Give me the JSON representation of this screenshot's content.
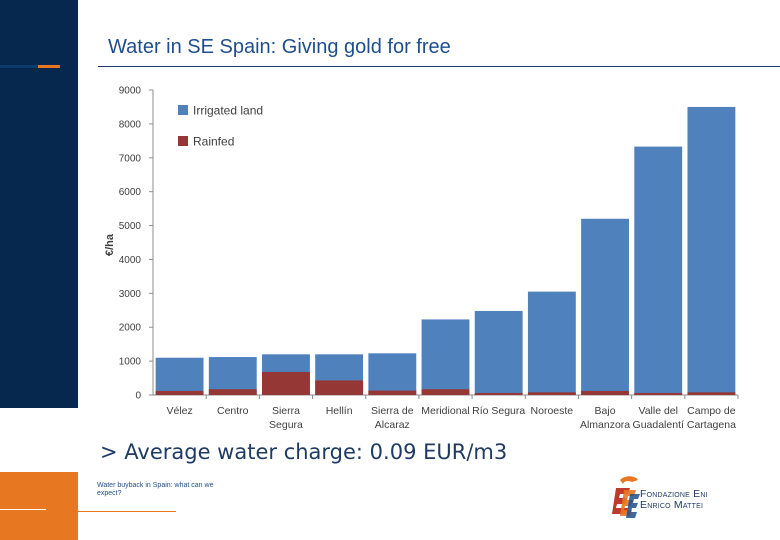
{
  "slide": {
    "title": "Water in SE Spain: Giving gold for free",
    "bullet": "> Average water charge: 0.09 EUR/m3",
    "footer_text": "Water buyback in Spain: what can we expect?",
    "logo_line1": "Fondazione Eni",
    "logo_line2": "Enrico Mattei"
  },
  "colors": {
    "irrigated": "#4f81bd",
    "rainfed": "#953734",
    "navy": "#06284f",
    "orange": "#e87722"
  },
  "chart_data": {
    "type": "bar",
    "stacked": true,
    "ylabel": "€/ha",
    "xlabel": "",
    "ylim": [
      0,
      9000
    ],
    "yticks": [
      0,
      1000,
      2000,
      3000,
      4000,
      5000,
      6000,
      7000,
      8000,
      9000
    ],
    "grid": false,
    "legend": "top-left",
    "categories": [
      [
        "Vélez"
      ],
      [
        "Centro"
      ],
      [
        "Sierra",
        "Segura"
      ],
      [
        "Hellín"
      ],
      [
        "Sierra de",
        "Alcaraz"
      ],
      [
        "Meridional"
      ],
      [
        "Río Segura"
      ],
      [
        "Noroeste"
      ],
      [
        "Bajo",
        "Almanzora"
      ],
      [
        "Valle del",
        "Guadalentí"
      ],
      [
        "Campo de",
        "Cartagena"
      ]
    ],
    "series": [
      {
        "name": "Irrigated land",
        "color": "#4f81bd",
        "values": [
          1100,
          1120,
          1200,
          1200,
          1230,
          2230,
          2480,
          3050,
          5200,
          7330,
          8500
        ]
      },
      {
        "name": "Rainfed",
        "color": "#953734",
        "values": [
          120,
          170,
          680,
          430,
          130,
          170,
          60,
          80,
          120,
          60,
          80
        ]
      }
    ]
  }
}
